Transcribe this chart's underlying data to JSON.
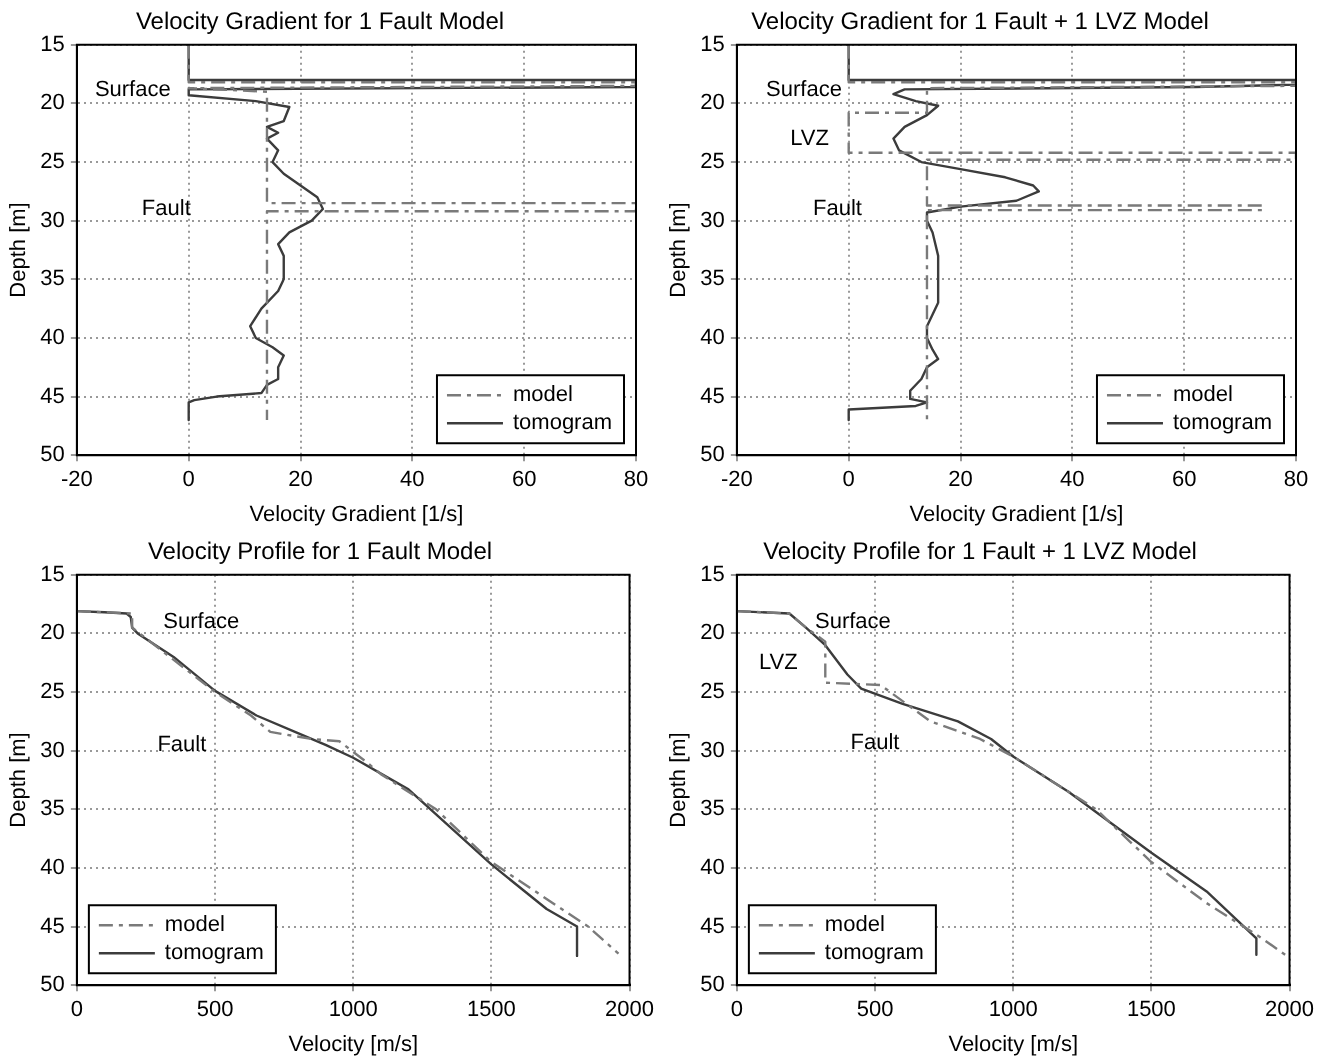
{
  "chart_data": [
    {
      "type": "line",
      "title": "Velocity Gradient for 1 Fault Model",
      "xlabel": "Velocity Gradient [1/s]",
      "ylabel": "Depth [m]",
      "xlim": [
        -20,
        80
      ],
      "xticks": [
        -20,
        0,
        20,
        40,
        60,
        80
      ],
      "ylim": [
        50,
        15
      ],
      "yticks": [
        15,
        20,
        25,
        30,
        35,
        40,
        45,
        50
      ],
      "grid": true,
      "legend": "bottom right",
      "annotations": [
        "Surface",
        "Fault"
      ],
      "series": [
        {
          "name": "model",
          "color": "#7a7a7a",
          "line_style": "dashed",
          "x": [
            0,
            0,
            80,
            80,
            0,
            14,
            14,
            80,
            80,
            14,
            14
          ],
          "values": [
            15,
            18.2,
            18.2,
            18.5,
            18.7,
            19,
            28.5,
            28.5,
            29.2,
            29.2,
            47
          ]
        },
        {
          "name": "tomogram",
          "color": "#3c3c3c",
          "line_style": "solid",
          "x": [
            0,
            0,
            80,
            80,
            0,
            0,
            12,
            18,
            17,
            14,
            16,
            14,
            16,
            15,
            17,
            20,
            23,
            24,
            22,
            18,
            16,
            17,
            17,
            16,
            13,
            11,
            12,
            15,
            17,
            16,
            16,
            14,
            13,
            5,
            1,
            0,
            0
          ],
          "values": [
            15,
            18,
            18,
            18.6,
            18.8,
            19.3,
            19.8,
            20.3,
            21.5,
            22,
            22.5,
            23,
            24,
            25,
            26,
            27,
            28,
            29,
            30,
            31,
            32,
            33,
            35,
            36,
            37.5,
            39,
            40,
            40.8,
            41.5,
            42.5,
            43.5,
            44,
            44.7,
            45,
            45.3,
            45.5,
            47
          ]
        }
      ]
    },
    {
      "type": "line",
      "title": "Velocity Gradient for 1 Fault + 1 LVZ Model",
      "xlabel": "Velocity Gradient [1/s]",
      "ylabel": "Depth [m]",
      "xlim": [
        -20,
        80
      ],
      "xticks": [
        -20,
        0,
        20,
        40,
        60,
        80
      ],
      "ylim": [
        50,
        15
      ],
      "yticks": [
        15,
        20,
        25,
        30,
        35,
        40,
        45,
        50
      ],
      "grid": true,
      "legend": "bottom right",
      "annotations": [
        "Surface",
        "LVZ",
        "Fault"
      ],
      "series": [
        {
          "name": "model",
          "color": "#7a7a7a",
          "line_style": "dashed",
          "x": [
            0,
            0,
            80,
            80,
            14,
            14,
            0,
            0,
            80,
            80,
            14,
            14,
            74,
            74,
            14,
            14
          ],
          "values": [
            15,
            18.2,
            18.2,
            18.5,
            18.7,
            20.8,
            20.8,
            24.2,
            24.2,
            24.8,
            24.8,
            28.7,
            28.7,
            29.1,
            29.1,
            47
          ]
        },
        {
          "name": "tomogram",
          "color": "#3c3c3c",
          "line_style": "solid",
          "x": [
            0,
            0,
            80,
            80,
            62,
            10,
            8,
            12,
            16,
            14,
            10,
            8,
            9,
            13,
            20,
            28,
            33,
            34,
            30,
            20,
            14,
            14,
            15,
            16,
            16,
            15,
            14,
            14,
            15,
            16,
            14,
            13,
            11,
            11,
            14,
            12,
            0,
            0
          ],
          "values": [
            15,
            18,
            18,
            18.4,
            18.6,
            18.8,
            19.2,
            19.8,
            20.2,
            21,
            22,
            23,
            24,
            25,
            25.6,
            26.3,
            27,
            27.5,
            28.3,
            28.8,
            29.3,
            30,
            31,
            33,
            37,
            38,
            39,
            40,
            41,
            41.8,
            42.5,
            43.5,
            44.5,
            45.2,
            45.5,
            45.8,
            46.1,
            47
          ]
        }
      ]
    },
    {
      "type": "line",
      "title": "Velocity Profile for 1 Fault Model",
      "xlabel": "Velocity [m/s]",
      "ylabel": "Depth [m]",
      "xlim": [
        0,
        2000
      ],
      "xticks": [
        0,
        500,
        1000,
        1500,
        2000
      ],
      "ylim": [
        50,
        15
      ],
      "yticks": [
        15,
        20,
        25,
        30,
        35,
        40,
        45,
        50
      ],
      "grid": true,
      "legend": "bottom left",
      "annotations": [
        "Surface",
        "Fault"
      ],
      "series": [
        {
          "name": "model",
          "color": "#7a7a7a",
          "line_style": "dashed",
          "x": [
            0,
            200,
            200,
            500,
            630,
            700,
            850,
            950,
            1050,
            1100,
            1300,
            1500,
            1850,
            1960
          ],
          "values": [
            18.1,
            18.3,
            19.5,
            25,
            27,
            28.4,
            29,
            29.2,
            31,
            32,
            35,
            39.5,
            45,
            47.3
          ]
        },
        {
          "name": "tomogram",
          "color": "#3c3c3c",
          "line_style": "solid",
          "x": [
            0,
            100,
            180,
            195,
            200,
            220,
            350,
            500,
            650,
            800,
            900,
            1000,
            1200,
            1500,
            1700,
            1810,
            1810
          ],
          "values": [
            18.1,
            18.2,
            18.3,
            18.6,
            19.5,
            20,
            22,
            24.9,
            27,
            28.5,
            29.5,
            30.6,
            33.3,
            39.7,
            43.5,
            45,
            47.5
          ]
        }
      ]
    },
    {
      "type": "line",
      "title": "Velocity Profile for 1 Fault + 1 LVZ Model",
      "xlabel": "Velocity [m/s]",
      "ylabel": "Depth [m]",
      "xlim": [
        0,
        2000
      ],
      "xticks": [
        0,
        500,
        1000,
        1500,
        2000
      ],
      "ylim": [
        50,
        15
      ],
      "yticks": [
        15,
        20,
        25,
        30,
        35,
        40,
        45,
        50
      ],
      "grid": true,
      "legend": "bottom left",
      "annotations": [
        "Surface",
        "LVZ",
        "Fault"
      ],
      "series": [
        {
          "name": "model",
          "color": "#7a7a7a",
          "line_style": "dashed",
          "x": [
            0,
            190,
            250,
            320,
            320,
            520,
            700,
            880,
            1000,
            1300,
            1500,
            1700,
            1900,
            1990
          ],
          "values": [
            18.1,
            18.3,
            19.5,
            20.7,
            24.2,
            24.4,
            27.5,
            29,
            30.5,
            35,
            39.5,
            43,
            46,
            47.5
          ]
        },
        {
          "name": "tomogram",
          "color": "#3c3c3c",
          "line_style": "solid",
          "x": [
            0,
            190,
            250,
            320,
            400,
            450,
            600,
            800,
            920,
            1000,
            1200,
            1500,
            1700,
            1880,
            1880
          ],
          "values": [
            18.1,
            18.3,
            19.5,
            21,
            23.5,
            24.7,
            26,
            27.5,
            29,
            30.5,
            33.5,
            38.7,
            42,
            46,
            47.4
          ]
        }
      ]
    }
  ]
}
